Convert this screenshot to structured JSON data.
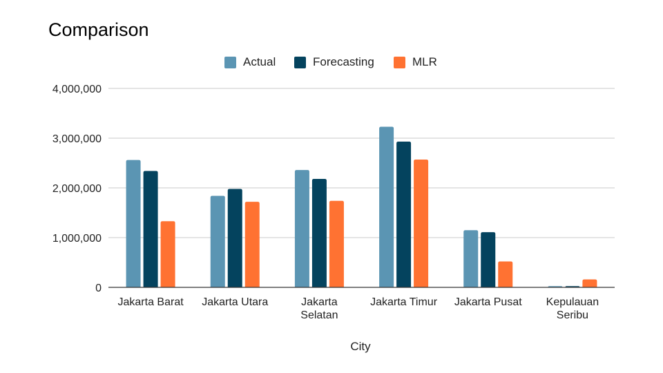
{
  "chart_data": {
    "type": "bar",
    "title": "Comparison",
    "xlabel": "City",
    "ylabel": "",
    "ylim": [
      0,
      4000000
    ],
    "yticks": [
      0,
      1000000,
      2000000,
      3000000,
      4000000
    ],
    "ytick_labels": [
      "0",
      "1,000,000",
      "2,000,000",
      "3,000,000",
      "4,000,000"
    ],
    "grid": true,
    "legend_position": "top-center",
    "categories": [
      "Jakarta Barat",
      "Jakarta Utara",
      "Jakarta Selatan",
      "Jakarta Timur",
      "Jakarta Pusat",
      "Kepulauan Seribu"
    ],
    "category_label_lines": [
      [
        "Jakarta Barat"
      ],
      [
        "Jakarta Utara"
      ],
      [
        "Jakarta",
        "Selatan"
      ],
      [
        "Jakarta Timur"
      ],
      [
        "Jakarta Pusat"
      ],
      [
        "Kepulauan",
        "Seribu"
      ]
    ],
    "series": [
      {
        "name": "Actual",
        "color": "#5b95b3",
        "values": [
          2560000,
          1840000,
          2360000,
          3230000,
          1150000,
          25000
        ]
      },
      {
        "name": "Forecasting",
        "color": "#04435e",
        "values": [
          2340000,
          1980000,
          2180000,
          2930000,
          1110000,
          25000
        ]
      },
      {
        "name": "MLR",
        "color": "#ff7232",
        "values": [
          1330000,
          1720000,
          1740000,
          2570000,
          520000,
          160000
        ]
      }
    ]
  }
}
